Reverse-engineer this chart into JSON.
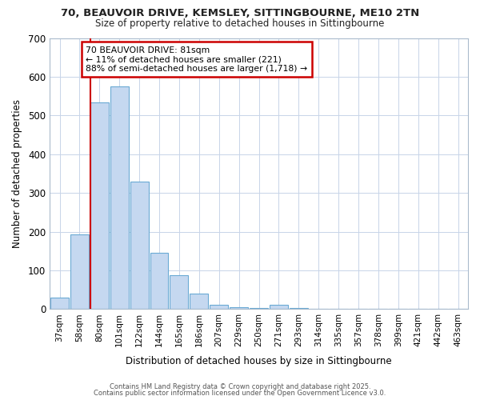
{
  "title_line1": "70, BEAUVOIR DRIVE, KEMSLEY, SITTINGBOURNE, ME10 2TN",
  "title_line2": "Size of property relative to detached houses in Sittingbourne",
  "xlabel": "Distribution of detached houses by size in Sittingbourne",
  "ylabel": "Number of detached properties",
  "categories": [
    "37sqm",
    "58sqm",
    "80sqm",
    "101sqm",
    "122sqm",
    "144sqm",
    "165sqm",
    "186sqm",
    "207sqm",
    "229sqm",
    "250sqm",
    "271sqm",
    "293sqm",
    "314sqm",
    "335sqm",
    "357sqm",
    "378sqm",
    "399sqm",
    "421sqm",
    "442sqm",
    "463sqm"
  ],
  "values": [
    30,
    193,
    533,
    575,
    330,
    145,
    88,
    40,
    12,
    5,
    2,
    12,
    2,
    0,
    0,
    0,
    0,
    0,
    0,
    0,
    0
  ],
  "bar_color": "#c5d8f0",
  "bar_edge_color": "#6aaad4",
  "grid_color": "#c8d4e8",
  "background_color": "#ffffff",
  "fig_background_color": "#ffffff",
  "red_line_index": 2,
  "red_line_color": "#cc0000",
  "annotation_text": "70 BEAUVOIR DRIVE: 81sqm\n← 11% of detached houses are smaller (221)\n88% of semi-detached houses are larger (1,718) →",
  "annotation_box_color": "#ffffff",
  "annotation_box_edge": "#cc0000",
  "footer_line1": "Contains HM Land Registry data © Crown copyright and database right 2025.",
  "footer_line2": "Contains public sector information licensed under the Open Government Licence v3.0.",
  "ylim": [
    0,
    700
  ],
  "yticks": [
    0,
    100,
    200,
    300,
    400,
    500,
    600,
    700
  ]
}
